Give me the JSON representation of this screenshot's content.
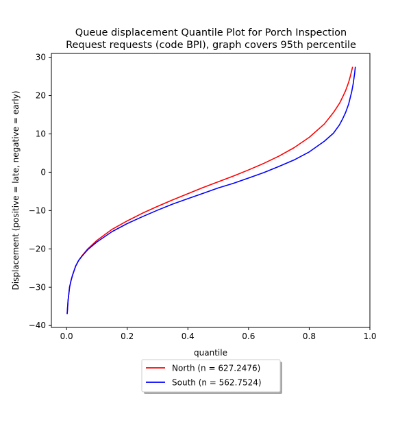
{
  "chart_data": {
    "type": "line",
    "title_lines": [
      "Queue displacement Quantile Plot for Porch Inspection",
      "Request  requests (code BPI), graph covers 95th percentile"
    ],
    "xlabel": "quantile",
    "ylabel": "Displacement (positive = late, negative = early)",
    "xlim": [
      -0.05,
      1.0
    ],
    "ylim": [
      -40.5,
      31.0
    ],
    "x_ticks": [
      0.0,
      0.2,
      0.4,
      0.6,
      0.8,
      1.0
    ],
    "x_tick_labels": [
      "0.0",
      "0.2",
      "0.4",
      "0.6",
      "0.8",
      "1.0"
    ],
    "y_ticks": [
      -40,
      -30,
      -20,
      -10,
      0,
      10,
      20,
      30
    ],
    "y_tick_labels": [
      "−40",
      "−30",
      "−20",
      "−10",
      "0",
      "10",
      "20",
      "30"
    ],
    "grid": false,
    "legend_position": "below-center",
    "series": [
      {
        "name": "North (n = 627.2476)",
        "color": "#ff0000",
        "x": [
          0.002,
          0.005,
          0.01,
          0.015,
          0.02,
          0.03,
          0.04,
          0.05,
          0.07,
          0.1,
          0.15,
          0.2,
          0.25,
          0.3,
          0.35,
          0.4,
          0.45,
          0.5,
          0.55,
          0.6,
          0.65,
          0.7,
          0.75,
          0.8,
          0.85,
          0.88,
          0.9,
          0.91,
          0.92,
          0.93,
          0.935,
          0.94,
          0.943
        ],
        "y": [
          -37.0,
          -33.5,
          -30.0,
          -28.2,
          -26.8,
          -24.5,
          -23.0,
          -21.9,
          -20.0,
          -17.8,
          -14.9,
          -12.7,
          -10.7,
          -8.9,
          -7.2,
          -5.6,
          -4.0,
          -2.5,
          -1.0,
          0.6,
          2.3,
          4.2,
          6.4,
          9.1,
          12.6,
          15.6,
          18.0,
          19.6,
          21.3,
          23.5,
          24.9,
          26.5,
          27.5
        ]
      },
      {
        "name": "South (n = 562.7524)",
        "color": "#0000ff",
        "x": [
          0.002,
          0.005,
          0.01,
          0.015,
          0.02,
          0.03,
          0.04,
          0.05,
          0.07,
          0.1,
          0.15,
          0.2,
          0.25,
          0.3,
          0.35,
          0.4,
          0.45,
          0.5,
          0.55,
          0.6,
          0.65,
          0.7,
          0.75,
          0.8,
          0.85,
          0.88,
          0.9,
          0.91,
          0.92,
          0.93,
          0.94,
          0.945,
          0.95,
          0.952
        ],
        "y": [
          -37.0,
          -33.5,
          -30.0,
          -28.2,
          -26.8,
          -24.5,
          -23.0,
          -22.0,
          -20.2,
          -18.2,
          -15.5,
          -13.4,
          -11.6,
          -9.9,
          -8.3,
          -6.9,
          -5.5,
          -4.1,
          -2.9,
          -1.5,
          -0.1,
          1.5,
          3.2,
          5.3,
          8.1,
          10.2,
          12.4,
          13.9,
          15.6,
          17.8,
          21.0,
          23.1,
          26.0,
          27.5
        ]
      }
    ]
  }
}
